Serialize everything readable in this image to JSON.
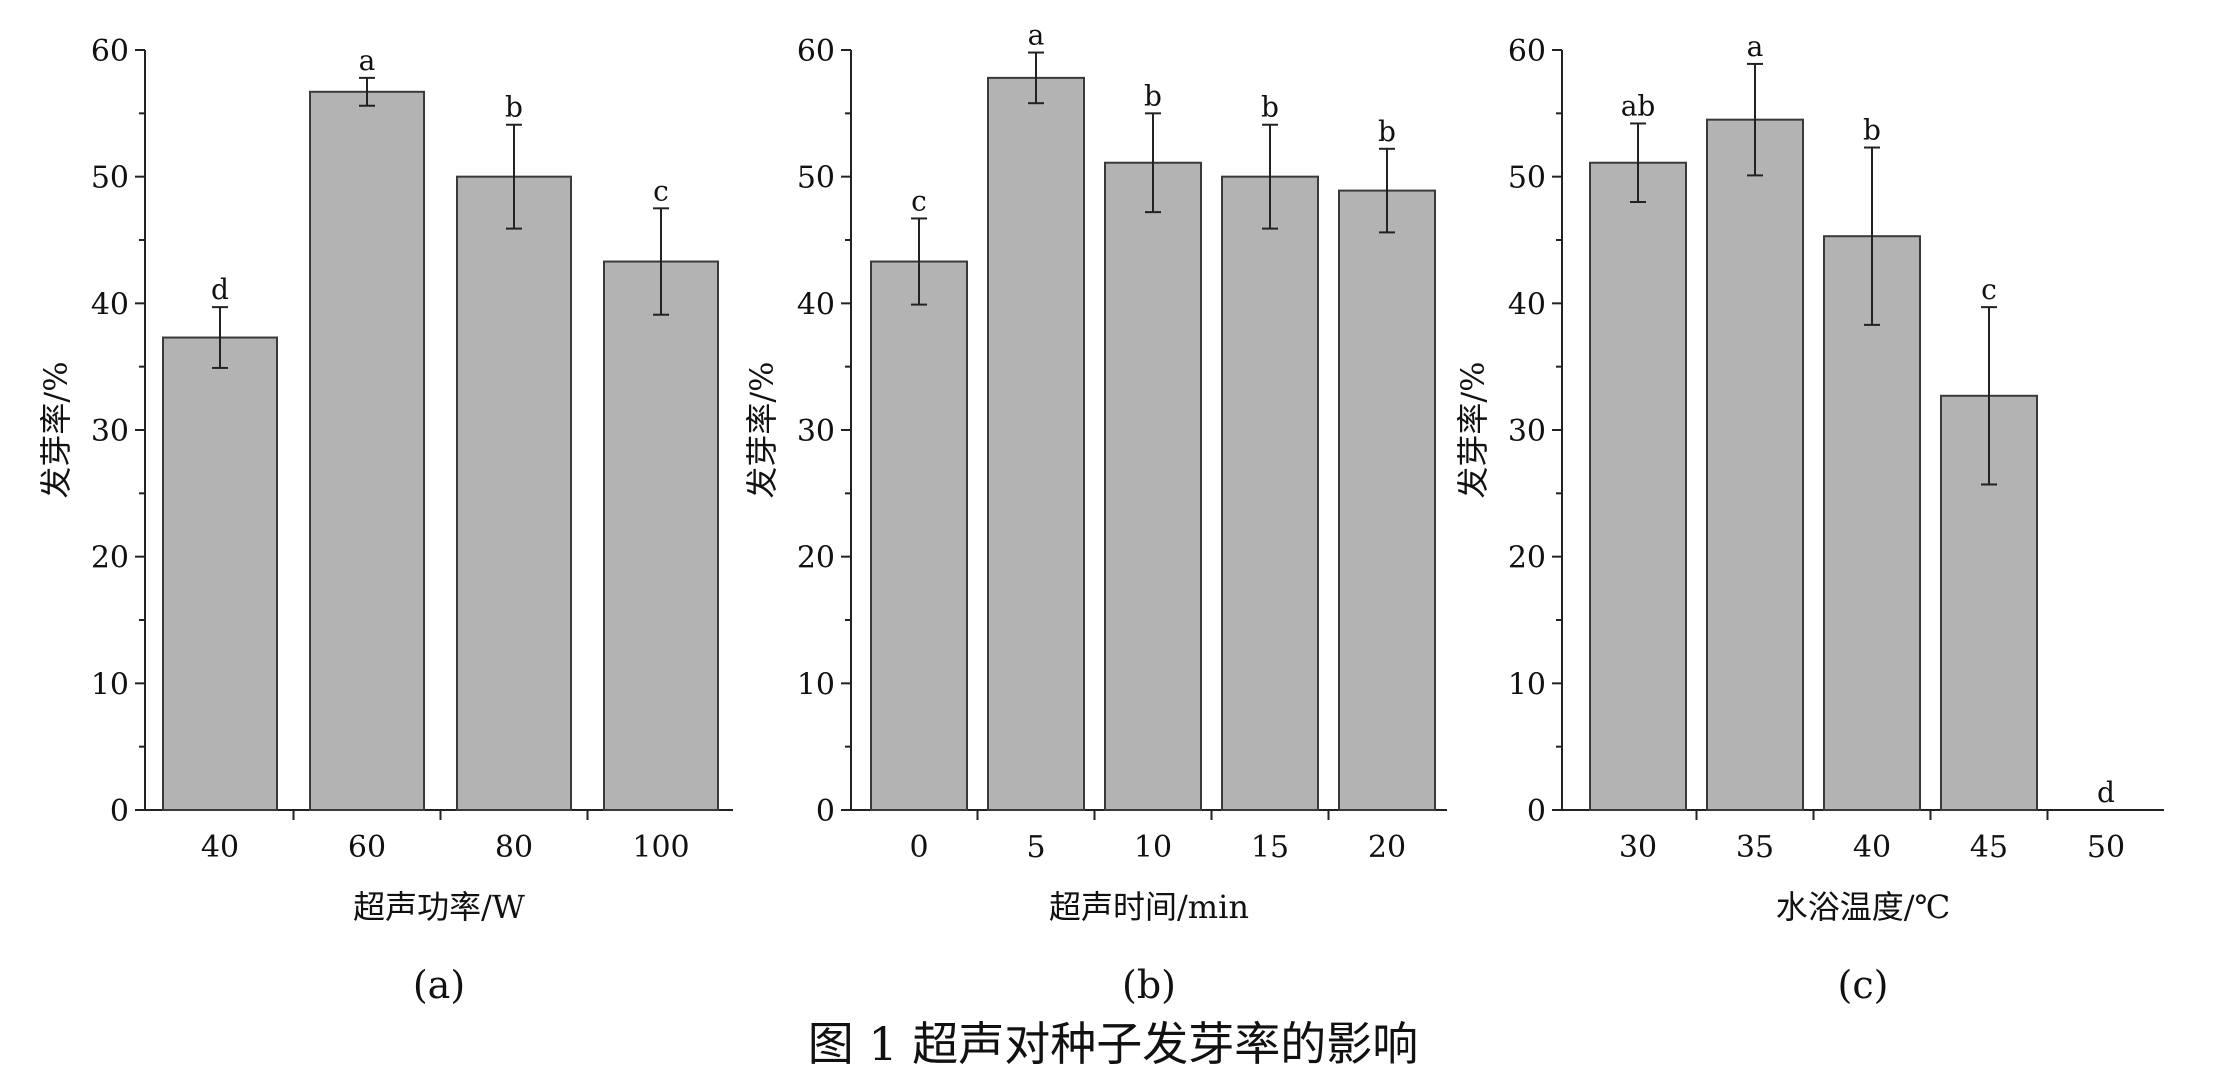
{
  "figure": {
    "caption": "图 1   超声对种子发芽率的影响"
  },
  "style": {
    "bar_fill": "#b3b3b3",
    "bar_stroke": "#3a3a3a",
    "axis_color": "#222222"
  },
  "chart_data": [
    {
      "type": "bar",
      "panel_label": "(a)",
      "xlabel": "超声功率/W",
      "ylabel": "发芽率/%",
      "ylim": [
        0,
        60
      ],
      "yticks": [
        0,
        10,
        20,
        30,
        40,
        50,
        60
      ],
      "categories": [
        "40",
        "60",
        "80",
        "100"
      ],
      "values": [
        37.3,
        56.7,
        50.0,
        43.3
      ],
      "errors": [
        2.4,
        1.1,
        4.1,
        4.2
      ],
      "significance": [
        "d",
        "a",
        "b",
        "c"
      ]
    },
    {
      "type": "bar",
      "panel_label": "(b)",
      "xlabel": "超声时间/min",
      "ylabel": "发芽率/%",
      "ylim": [
        0,
        60
      ],
      "yticks": [
        0,
        10,
        20,
        30,
        40,
        50,
        60
      ],
      "categories": [
        "0",
        "5",
        "10",
        "15",
        "20"
      ],
      "values": [
        43.3,
        57.8,
        51.1,
        50.0,
        48.9
      ],
      "errors": [
        3.4,
        2.0,
        3.9,
        4.1,
        3.3
      ],
      "significance": [
        "c",
        "a",
        "b",
        "b",
        "b"
      ]
    },
    {
      "type": "bar",
      "panel_label": "(c)",
      "xlabel": "水浴温度/℃",
      "ylabel": "发芽率/%",
      "ylim": [
        0,
        60
      ],
      "yticks": [
        0,
        10,
        20,
        30,
        40,
        50,
        60
      ],
      "categories": [
        "30",
        "35",
        "40",
        "45",
        "50"
      ],
      "values": [
        51.1,
        54.5,
        45.3,
        32.7,
        0
      ],
      "errors": [
        3.1,
        4.4,
        7.0,
        7.0,
        0
      ],
      "significance": [
        "ab",
        "a",
        "b",
        "c",
        "d"
      ]
    }
  ]
}
